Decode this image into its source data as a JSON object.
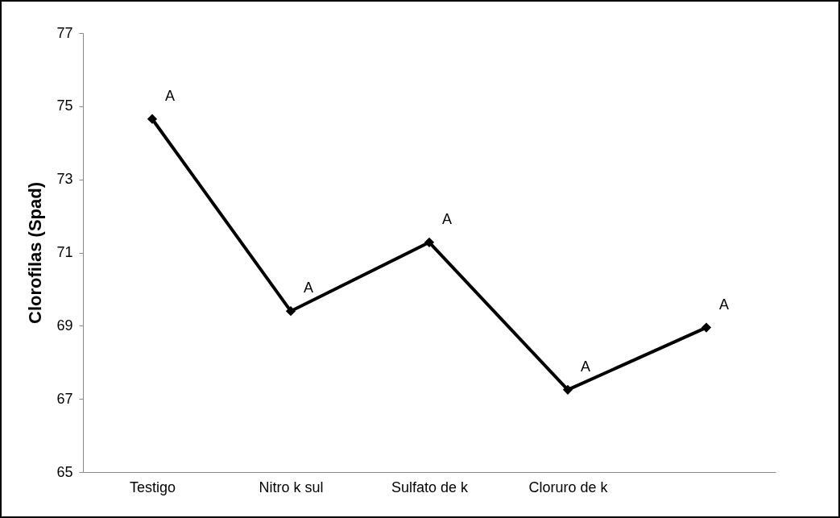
{
  "chart_data": {
    "type": "line",
    "ylabel": "Clorofilas (Spad)",
    "categories": [
      "Testigo",
      "Nitro k sul",
      "Sulfato de k",
      "Cloruro de k",
      null
    ],
    "series": [
      {
        "color": "#000000",
        "values": [
          74.65,
          69.4,
          71.28,
          67.25,
          68.95
        ]
      }
    ],
    "ylim": [
      65,
      77
    ],
    "yticks": [
      65,
      67,
      69,
      71,
      73,
      75,
      77
    ],
    "grid": false,
    "marker": "diamond",
    "line_style": "solid",
    "annotations": [
      {
        "text": "A",
        "x": "Testigo",
        "y": 74.65
      },
      {
        "text": "A",
        "x": "Nitro k sul",
        "y": 69.4
      },
      {
        "text": "A",
        "x": "Sulfato de k",
        "y": 71.28
      },
      {
        "text": "A",
        "x": "Cloruro de k",
        "y": 67.25
      },
      "A"
    ]
  }
}
